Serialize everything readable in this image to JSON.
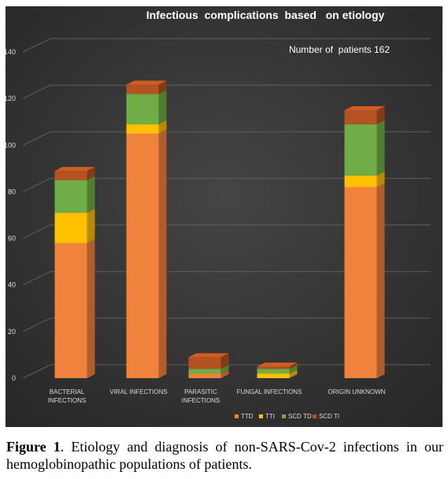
{
  "chart_data": {
    "type": "bar",
    "stacked": true,
    "title": "Infectious  complications  based   on etiology",
    "annotation": "Number of  patients 162",
    "categories": [
      "BACTERIAL INFECTIONS",
      "VIRAL INFECTIONS",
      "PARASITIC INFECTIONS",
      "FUNGAL INFECTIONS",
      "ORIGIN UNKNOWN"
    ],
    "series": [
      {
        "name": "TTD",
        "color": "#f0823c",
        "values": [
          58,
          105,
          2,
          0,
          82
        ]
      },
      {
        "name": "TTI",
        "color": "#ffc000",
        "values": [
          13,
          4,
          0,
          2,
          5
        ]
      },
      {
        "name": "SCD TD",
        "color": "#70ad47",
        "values": [
          14,
          13,
          2,
          2,
          22
        ]
      },
      {
        "name": "SCD TI",
        "color": "#b5521f",
        "values": [
          4,
          4,
          5,
          1,
          6
        ]
      }
    ],
    "ylim": [
      0,
      140
    ],
    "yticks": [
      0,
      20,
      40,
      60,
      80,
      100,
      120,
      140
    ],
    "grid": true,
    "legend_position": "bottom",
    "background": "#3a3a3a"
  },
  "caption": {
    "label": "Figure 1",
    "text": ". Etiology and diagnosis of non-SARS-Cov-2 infections in our hemoglobinopathic populations of patients."
  }
}
